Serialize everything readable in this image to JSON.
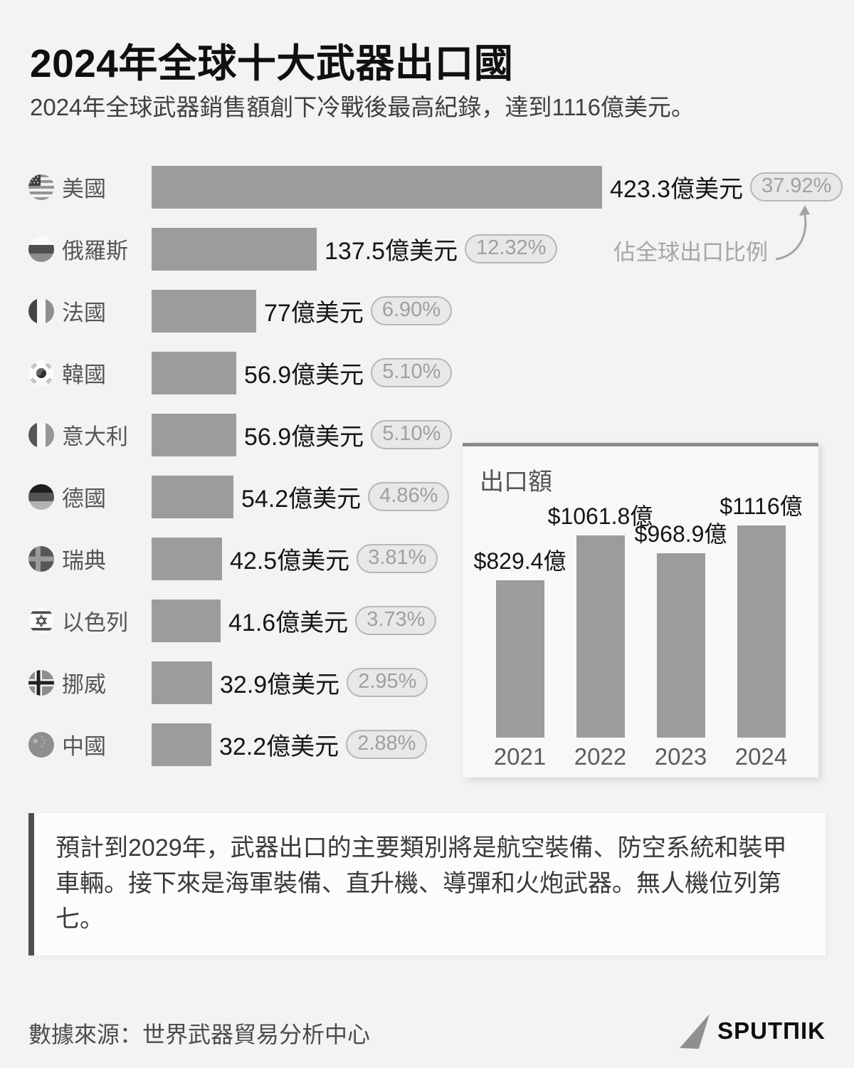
{
  "header": {
    "title": "2024年全球十大武器出口國",
    "subtitle": "2024年全球武器銷售額創下冷戰後最高紀錄，達到1116億美元。"
  },
  "chart_data": [
    {
      "type": "bar",
      "orientation": "horizontal",
      "title": "2024年全球十大武器出口國",
      "unit": "億美元",
      "annotation": "佔全球出口比例",
      "rows": [
        {
          "country": "美國",
          "flag": "united-states",
          "value": 423.3,
          "value_label": "423.3億美元",
          "share_pct": 37.92,
          "share_label": "37.92%"
        },
        {
          "country": "俄羅斯",
          "flag": "russia",
          "value": 137.5,
          "value_label": "137.5億美元",
          "share_pct": 12.32,
          "share_label": "12.32%"
        },
        {
          "country": "法國",
          "flag": "france",
          "value": 77,
          "value_label": "77億美元",
          "share_pct": 6.9,
          "share_label": "6.90%"
        },
        {
          "country": "韓國",
          "flag": "south-korea",
          "value": 56.9,
          "value_label": "56.9億美元",
          "share_pct": 5.1,
          "share_label": "5.10%"
        },
        {
          "country": "意大利",
          "flag": "italy",
          "value": 56.9,
          "value_label": "56.9億美元",
          "share_pct": 5.1,
          "share_label": "5.10%"
        },
        {
          "country": "德國",
          "flag": "germany",
          "value": 54.2,
          "value_label": "54.2億美元",
          "share_pct": 4.86,
          "share_label": "4.86%"
        },
        {
          "country": "瑞典",
          "flag": "sweden",
          "value": 42.5,
          "value_label": "42.5億美元",
          "share_pct": 3.81,
          "share_label": "3.81%"
        },
        {
          "country": "以色列",
          "flag": "israel",
          "value": 41.6,
          "value_label": "41.6億美元",
          "share_pct": 3.73,
          "share_label": "3.73%"
        },
        {
          "country": "挪威",
          "flag": "norway",
          "value": 32.9,
          "value_label": "32.9億美元",
          "share_pct": 2.95,
          "share_label": "2.95%"
        },
        {
          "country": "中國",
          "flag": "china",
          "value": 32.2,
          "value_label": "32.2億美元",
          "share_pct": 2.88,
          "share_label": "2.88%"
        }
      ]
    },
    {
      "type": "bar",
      "orientation": "vertical",
      "title": "出口額",
      "categories": [
        "2021",
        "2022",
        "2023",
        "2024"
      ],
      "values": [
        829.4,
        1061.8,
        968.9,
        1116
      ],
      "value_labels": [
        "$829.4億",
        "$1061.8億",
        "$968.9億",
        "$1116億"
      ],
      "unit": "億美元"
    }
  ],
  "callout": {
    "text": "預計到2029年，武器出口的主要類別將是航空裝備、防空系統和裝甲車輛。接下來是海軍裝備、直升機、導彈和火炮武器。無人機位列第七。"
  },
  "footer": {
    "source": "數據來源：世界武器貿易分析中心",
    "brand": "SPUTNIK",
    "brand_display": "SPUTΠIK"
  },
  "colors": {
    "background": "#f3f3f3",
    "bar": "#9c9c9c",
    "badge_background": "#e8e8e8",
    "badge_border": "#b7b7b7",
    "badge_text": "#a0a0a0",
    "panel_top_border": "#8a8a8a"
  }
}
